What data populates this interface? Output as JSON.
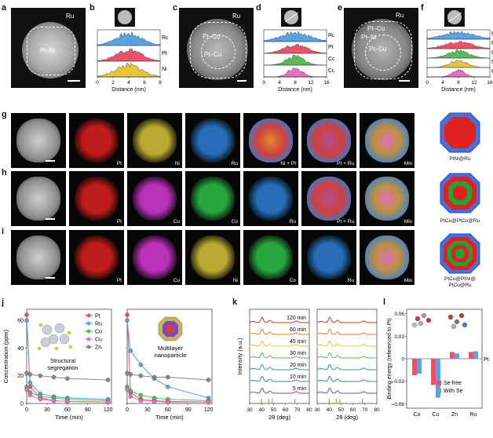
{
  "panel_labels": {
    "a": "a",
    "b": "b",
    "c": "c",
    "d": "d",
    "e": "e",
    "f": "f",
    "g": "g",
    "h": "h",
    "i": "i",
    "j": "j",
    "k": "k",
    "l": "l"
  },
  "top": {
    "a": {
      "ru": "Ru",
      "core": "Pt–Ni"
    },
    "c": {
      "ru": "Ru",
      "shell": "Pt–Co",
      "core": "Pt–Cu"
    },
    "e": {
      "ru": "Ru",
      "shell1": "Pt–Co",
      "shell2": "Pt–Ni",
      "core": "Pt–Cu"
    },
    "b": {
      "xlabel": "Distance (nm)",
      "ticks": [
        "0",
        "2",
        "4",
        "6",
        "8"
      ],
      "traces": [
        "Ru",
        "Pt",
        "Ni"
      ]
    },
    "d": {
      "xlabel": "Distance (nm)",
      "ticks": [
        "0",
        "4",
        "8",
        "12",
        "16"
      ],
      "traces": [
        "Ru",
        "Pt",
        "Co",
        "Cu"
      ]
    },
    "f": {
      "xlabel": "Distance (nm)",
      "ticks": [
        "0",
        "4",
        "8",
        "12",
        "16"
      ],
      "traces": [
        "Ru",
        "Pt",
        "Co",
        "Ni",
        "Cu"
      ]
    }
  },
  "maps": {
    "g": [
      "Pt",
      "Ni",
      "Ru",
      "Ni + Pt",
      "Pt + Ru",
      "Mix"
    ],
    "h": [
      "Pt",
      "Cu",
      "Co",
      "Ru",
      "Pt + Ru",
      "Mix"
    ],
    "i": [
      "Pt",
      "Cu",
      "Ni",
      "Co",
      "Ru",
      "Mix"
    ]
  },
  "models": [
    "PtNi@Ru",
    "PtCu@PtCo@Ru",
    "PtCu@PtNi@\nPtCo@Ru"
  ],
  "j": {
    "ylabel": "Concentration (ppm)",
    "xlabel": "Time (min)",
    "yticks": [
      "0",
      "20",
      "40",
      "60"
    ],
    "xticks": [
      "0",
      "30",
      "60",
      "90",
      "120"
    ],
    "legend": [
      "Pt",
      "Ru",
      "Co",
      "Cu",
      "Zn"
    ],
    "label1": "Structural\nsegregation",
    "label2": "Multilayer\nnanoparticle"
  },
  "k": {
    "ylabel": "Intensity (a.u.)",
    "xlabel": "2θ (deg)",
    "xticks": [
      "30",
      "40",
      "50",
      "60",
      "70",
      "80"
    ],
    "times": [
      "120 min",
      "60 min",
      "45 min",
      "30 min",
      "20 min",
      "10 min",
      "5 min"
    ]
  },
  "l": {
    "ylabel": "Binding energy (referenced to Pt)",
    "yticks": [
      "0.06",
      "0.03",
      "0",
      "–0.03",
      "–0.06"
    ],
    "categories": [
      "Co",
      "Cu",
      "Zn",
      "Ru"
    ],
    "reference": "Pt",
    "legend": [
      "Se-free",
      "With Se"
    ]
  },
  "colors": {
    "pt": "#e8536a",
    "ru": "#5aa2e0",
    "co": "#5bb85b",
    "cu": "#e86fc0",
    "zn": "#888888",
    "ni": "#e8c43a"
  },
  "chart_data": [
    {
      "type": "line",
      "title": "",
      "xlabel": "Time (min)",
      "ylabel": "Concentration (ppm)",
      "note": "Structural segregation",
      "x": [
        0,
        5,
        20,
        40,
        60,
        120
      ],
      "series": [
        {
          "name": "Pt",
          "values": [
            64,
            12,
            4,
            2,
            1.5,
            1
          ]
        },
        {
          "name": "Ru",
          "values": [
            60,
            15,
            7,
            5,
            4,
            3
          ]
        },
        {
          "name": "Co",
          "values": [
            12,
            8,
            5,
            4,
            3,
            2
          ]
        },
        {
          "name": "Cu",
          "values": [
            10,
            6,
            3,
            2,
            1.5,
            1
          ]
        },
        {
          "name": "Zn",
          "values": [
            22,
            21,
            20,
            19,
            18,
            17
          ]
        }
      ],
      "ylim": [
        0,
        68
      ],
      "xlim": [
        0,
        125
      ]
    },
    {
      "type": "line",
      "title": "",
      "xlabel": "Time (min)",
      "ylabel": "",
      "note": "Multilayer nanoparticle",
      "x": [
        0,
        5,
        20,
        40,
        60,
        120
      ],
      "series": [
        {
          "name": "Pt",
          "values": [
            64,
            8,
            3,
            2,
            1.5,
            1
          ]
        },
        {
          "name": "Ru",
          "values": [
            60,
            38,
            28,
            18,
            12,
            4
          ]
        },
        {
          "name": "Co",
          "values": [
            12,
            9,
            6,
            4,
            3,
            2
          ]
        },
        {
          "name": "Cu",
          "values": [
            10,
            5,
            2,
            1.5,
            1,
            1
          ]
        },
        {
          "name": "Zn",
          "values": [
            22,
            21,
            20,
            19,
            19,
            17
          ]
        }
      ],
      "ylim": [
        0,
        68
      ],
      "xlim": [
        0,
        125
      ]
    },
    {
      "type": "bar",
      "title": "",
      "xlabel": "",
      "ylabel": "Binding energy (referenced to Pt)",
      "categories": [
        "Co",
        "Cu",
        "Zn",
        "Ru"
      ],
      "series": [
        {
          "name": "Se-free",
          "values": [
            -0.022,
            -0.035,
            0.009,
            0.009
          ]
        },
        {
          "name": "With Se",
          "values": [
            -0.02,
            -0.052,
            0.007,
            0.01
          ]
        }
      ],
      "ylim": [
        -0.066,
        0.066
      ]
    }
  ]
}
